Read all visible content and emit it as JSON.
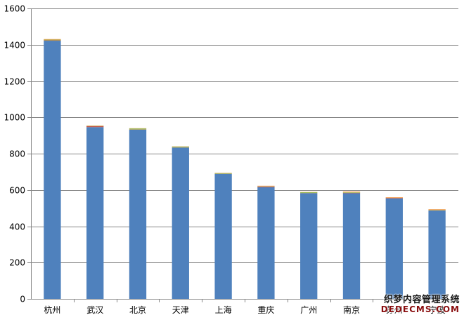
{
  "chart_data": {
    "type": "bar",
    "stacked": true,
    "title": "",
    "xlabel": "",
    "ylabel": "",
    "ylim": [
      0,
      1600
    ],
    "yticks": [
      0,
      200,
      400,
      600,
      800,
      1000,
      1200,
      1400,
      1600
    ],
    "grid": "horizontal",
    "legend": "none",
    "categories": [
      "杭州",
      "武汉",
      "北京",
      "天津",
      "上海",
      "重庆",
      "广州",
      "南京",
      "苏州",
      "宁波"
    ],
    "series": [
      {
        "color": "#4f81bd",
        "values": [
          1422,
          946,
          932,
          833,
          688,
          615,
          582,
          582,
          553,
          486
        ]
      },
      {
        "color": "#c0504d",
        "values": [
          2,
          5,
          1,
          1,
          1,
          4,
          1,
          2,
          3,
          2
        ]
      },
      {
        "color": "#9bbb59",
        "values": [
          4,
          2,
          6,
          5,
          4,
          2,
          5,
          3,
          1,
          3
        ]
      },
      {
        "color": "#f79646",
        "values": [
          3,
          2,
          1,
          1,
          1,
          2,
          1,
          4,
          3,
          3
        ]
      }
    ]
  },
  "watermark": {
    "line1": "织梦内容管理系统",
    "line2": "DEDECMS.COM"
  }
}
